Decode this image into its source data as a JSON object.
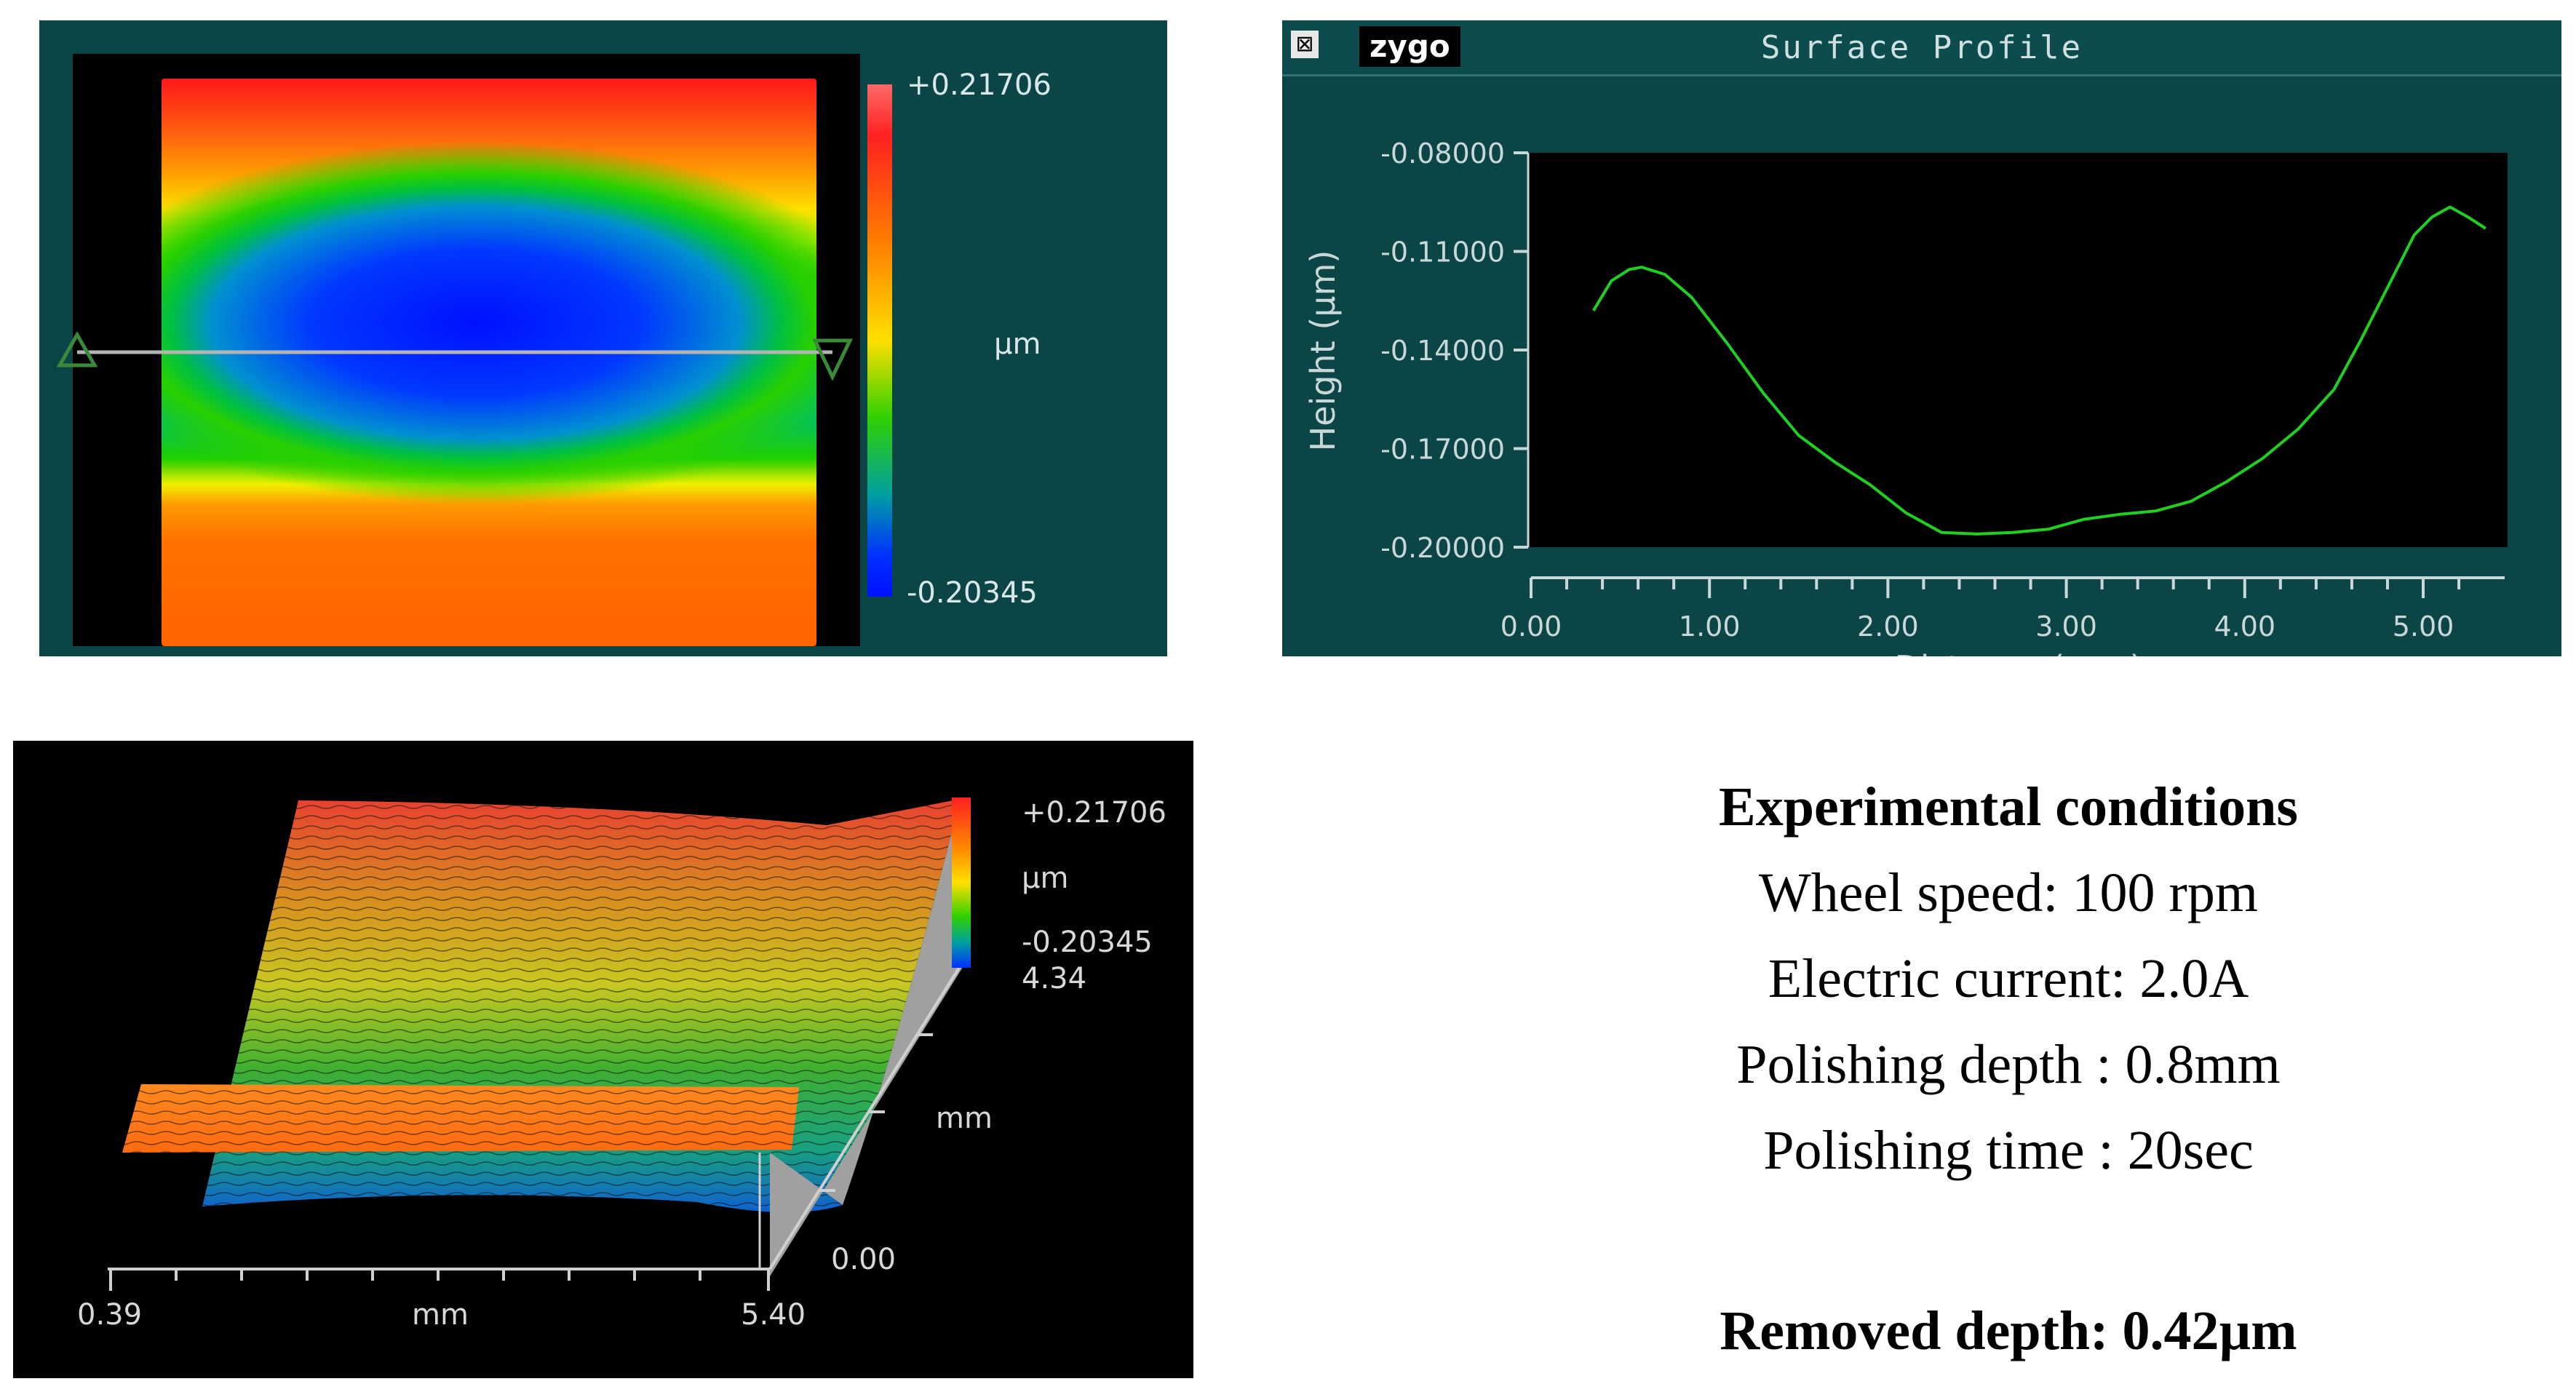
{
  "map_2d": {
    "colorbar_max": "+0.21706",
    "colorbar_min": "-0.20345",
    "unit": "µm",
    "colors": {
      "panel": "#0b4545",
      "line": "#b0b0b0"
    }
  },
  "profile_window": {
    "title": "Surface Profile",
    "logo": "zygo",
    "close_glyph": "⊠"
  },
  "chart_data": {
    "type": "line",
    "title": "Surface Profile",
    "xlabel": "Distance (mm)",
    "ylabel": "Height (µm)",
    "xlim": [
      0,
      5.8
    ],
    "ylim": [
      -0.2,
      -0.08
    ],
    "x_ticks": [
      "0.00",
      "1.00",
      "2.00",
      "3.00",
      "4.00",
      "5.00"
    ],
    "y_ticks": [
      "-0.08000",
      "-0.11000",
      "-0.14000",
      "-0.17000",
      "-0.20000"
    ],
    "series": [
      {
        "name": "profile",
        "color": "#20d020",
        "x": [
          0.35,
          0.45,
          0.55,
          0.62,
          0.75,
          0.9,
          1.1,
          1.3,
          1.5,
          1.7,
          1.9,
          2.1,
          2.3,
          2.5,
          2.7,
          2.9,
          3.1,
          3.3,
          3.5,
          3.7,
          3.9,
          4.1,
          4.3,
          4.5,
          4.65,
          4.8,
          4.95,
          5.05,
          5.15,
          5.25,
          5.35
        ],
        "y": [
          -0.128,
          -0.119,
          -0.1155,
          -0.1148,
          -0.117,
          -0.124,
          -0.138,
          -0.153,
          -0.166,
          -0.174,
          -0.181,
          -0.1895,
          -0.1955,
          -0.196,
          -0.1955,
          -0.1945,
          -0.1915,
          -0.19,
          -0.189,
          -0.186,
          -0.18,
          -0.173,
          -0.164,
          -0.152,
          -0.137,
          -0.121,
          -0.105,
          -0.0995,
          -0.0965,
          -0.0995,
          -0.103
        ]
      }
    ]
  },
  "map_3d": {
    "colorbar_max": "+0.21706",
    "colorbar_unit": "µm",
    "colorbar_min": "-0.20345",
    "y_axis_max": "4.34",
    "y_axis_unit": "mm",
    "y_axis_min": "0.00",
    "x_axis_min": "0.39",
    "x_axis_unit": "mm",
    "x_axis_max": "5.40"
  },
  "conditions": {
    "heading": "Experimental conditions",
    "lines": [
      "Wheel speed: 100 rpm",
      "Electric current: 2.0A",
      "Polishing depth : 0.8mm",
      "Polishing time : 20sec"
    ],
    "result": "Removed depth: 0.42µm"
  }
}
